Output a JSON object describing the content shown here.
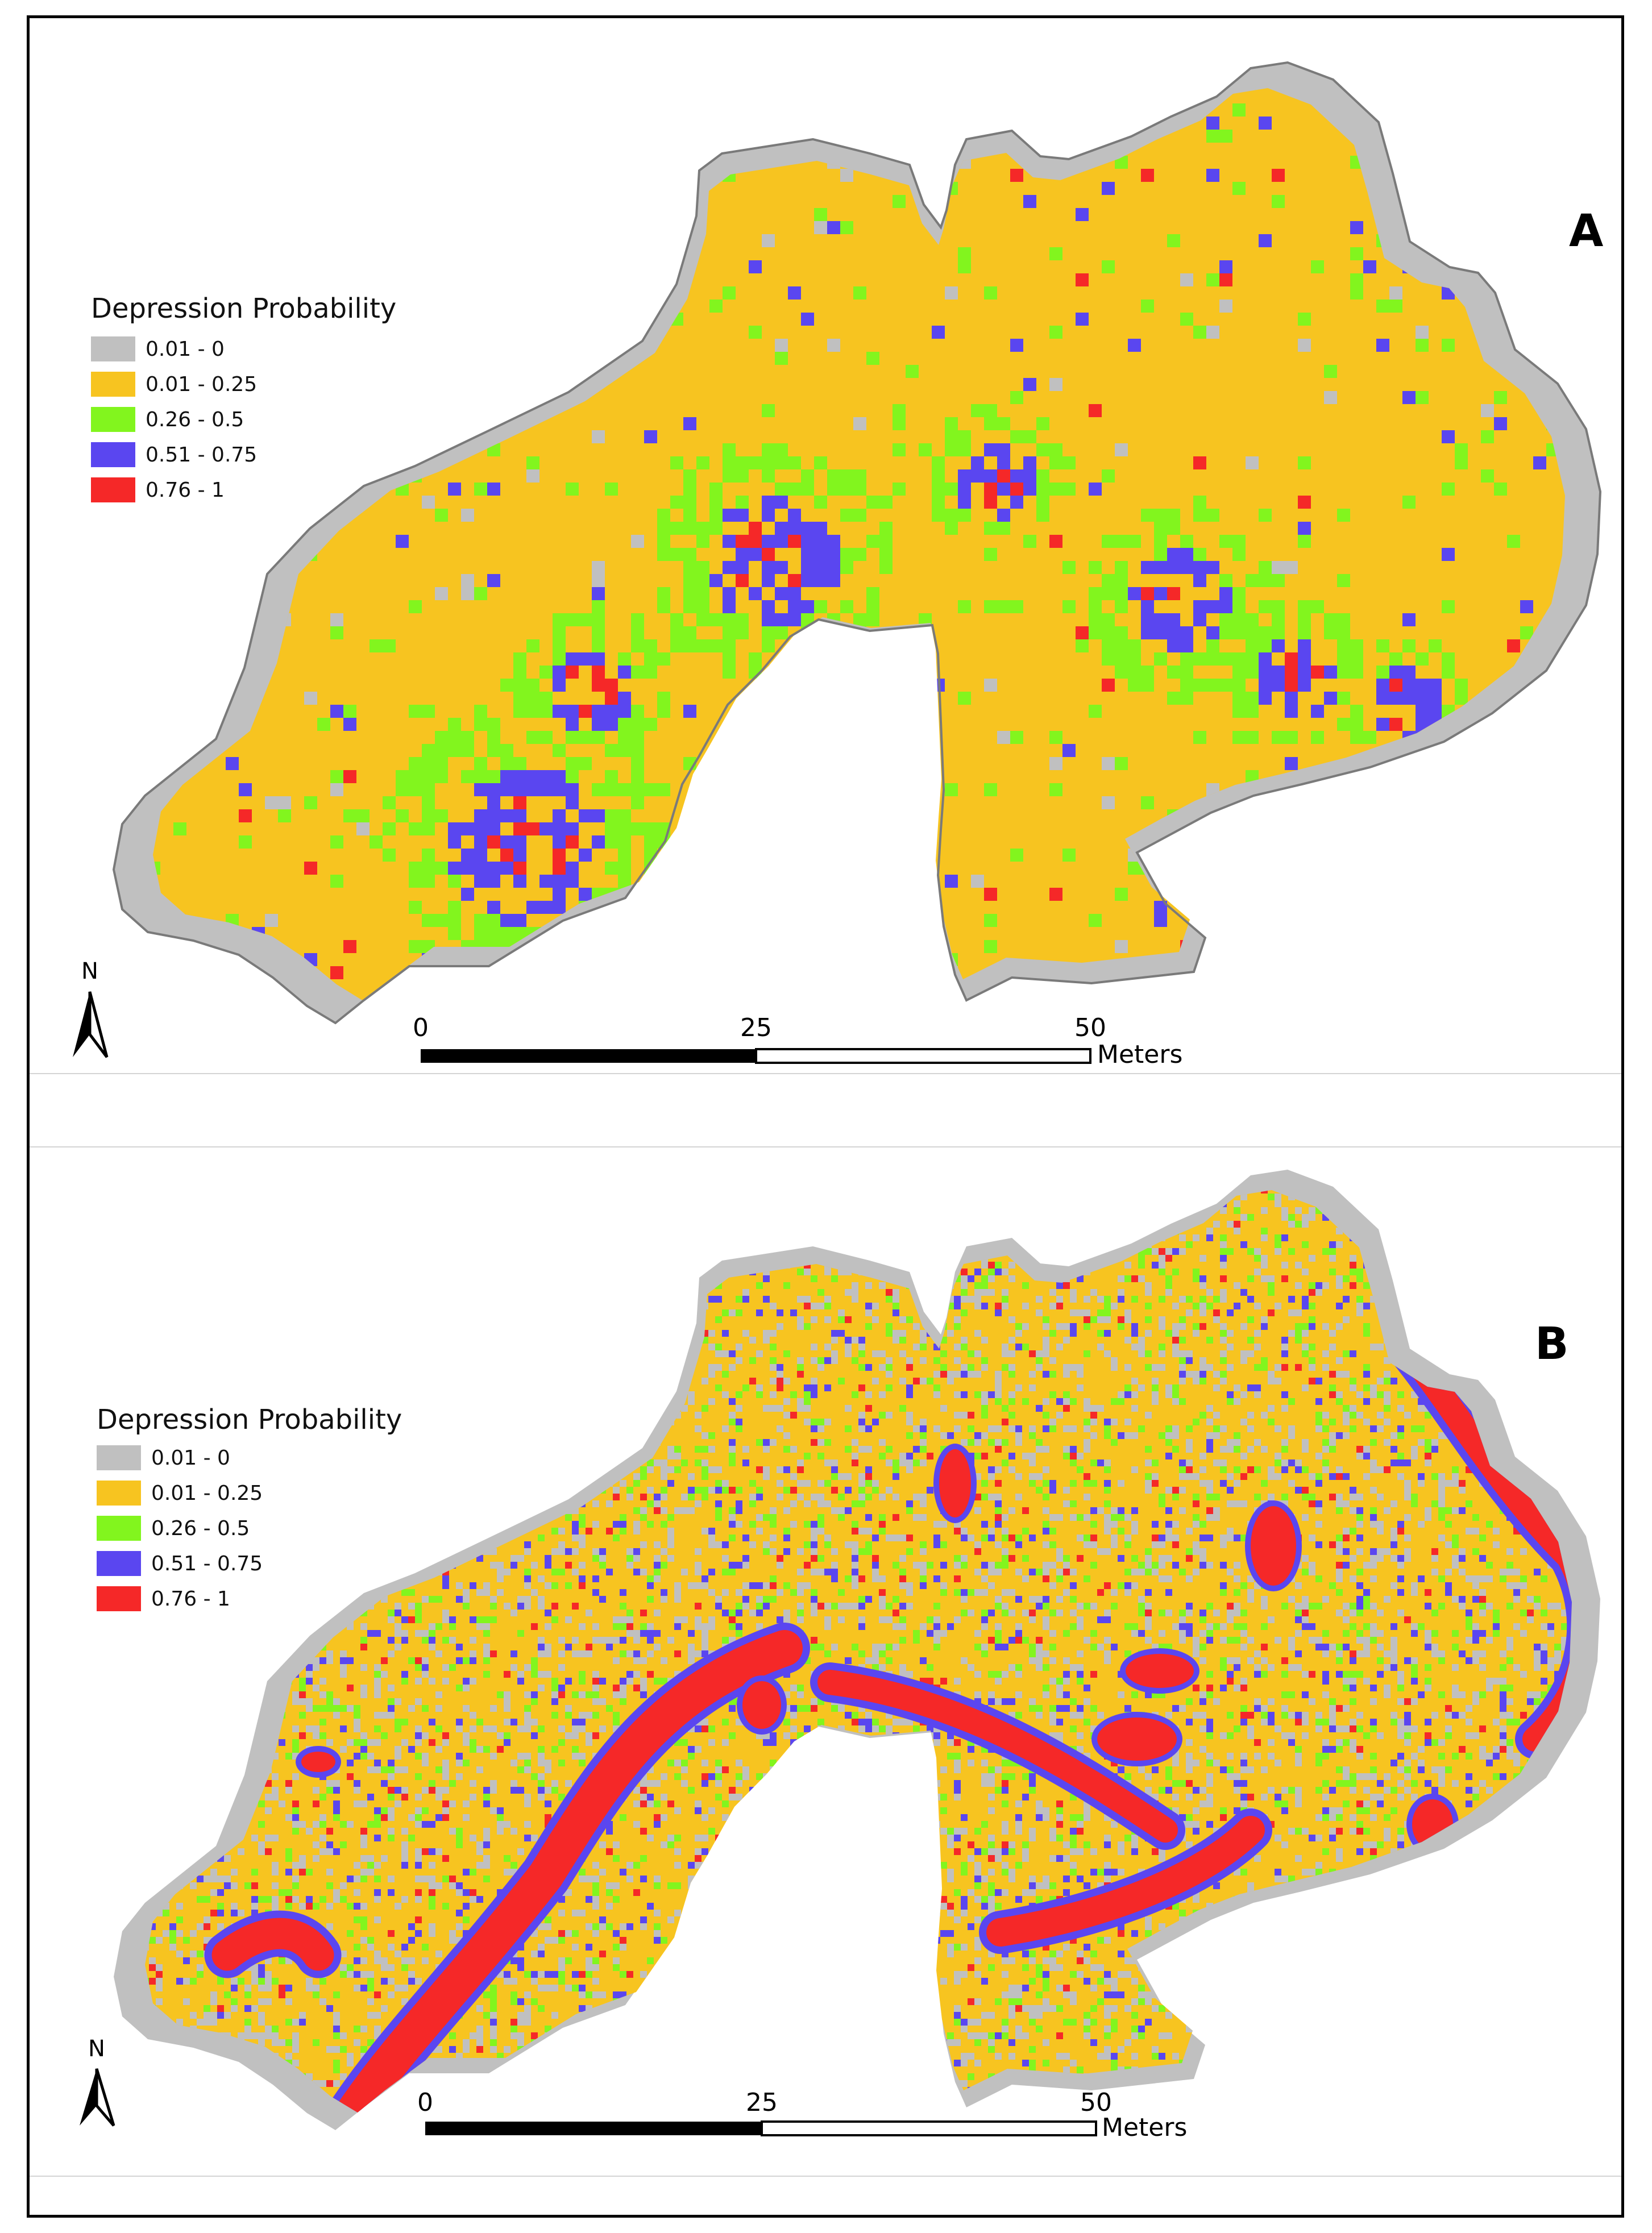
{
  "colors": {
    "class_0": "#c0c0c0",
    "class_1": "#f7c420",
    "class_2": "#82f51e",
    "class_3": "#5a46f0",
    "class_4": "#f52828"
  },
  "panels": [
    {
      "label": "A",
      "legend_title": "Depression Probability",
      "legend": [
        {
          "label": "0.01 - 0"
        },
        {
          "label": "0.01 - 0.25"
        },
        {
          "label": "0.26 - 0.5"
        },
        {
          "label": "0.51 - 0.75"
        },
        {
          "label": "0.76 - 1"
        }
      ],
      "north_label": "N",
      "scale_ticks": [
        "0",
        "25",
        "50"
      ],
      "scale_unit": "Meters"
    },
    {
      "label": "B",
      "legend_title": "Depression Probability",
      "legend": [
        {
          "label": "0.01 - 0"
        },
        {
          "label": "0.01 - 0.25"
        },
        {
          "label": "0.26 - 0.5"
        },
        {
          "label": "0.51 - 0.75"
        },
        {
          "label": "0.76 - 1"
        }
      ],
      "north_label": "N",
      "scale_ticks": [
        "0",
        "25",
        "50"
      ],
      "scale_unit": "Meters"
    }
  ]
}
